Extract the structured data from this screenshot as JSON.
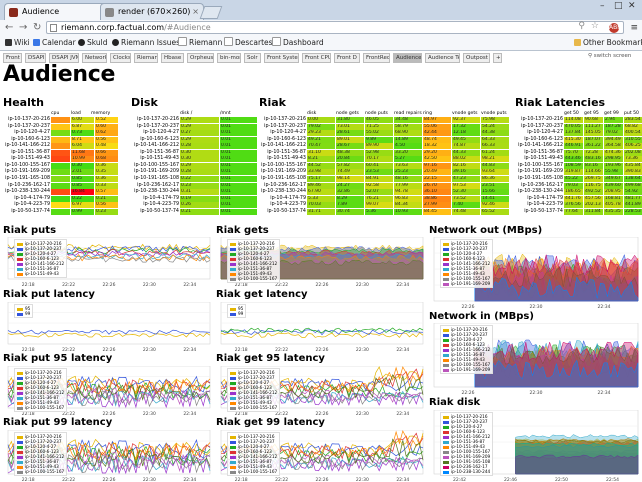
{
  "browser": {
    "tabs": [
      {
        "label": "Audience",
        "active": true
      },
      {
        "label": "render (670×260)",
        "active": false
      }
    ],
    "url_host": "riemann.corp.factual.com",
    "url_path": "/#Audience",
    "ext_badge": "ABP"
  },
  "bookmarks": {
    "items": [
      "Wiki",
      "Calendar",
      "Skuld",
      "Riemann Issues",
      "Riemann",
      "Descartes",
      "Dashboard"
    ],
    "other": "Other Bookmarks"
  },
  "dash_tabs": {
    "items": [
      "Front",
      "DSAPI",
      "DSAPI JVM",
      "Network",
      "Clocks",
      "Riemann",
      "Hbase",
      "Orpheus",
      "bin-mon",
      "Solr",
      "Front System",
      "Front CPU",
      "Front D",
      "FrontReq",
      "Audience",
      "Audience Test",
      "Outpost"
    ],
    "active": "Audience",
    "add": "+",
    "search_label": "switch screen"
  },
  "page": {
    "title": "Audience"
  },
  "sections": {
    "health": "Health",
    "disk": "Disk",
    "riak": "Riak",
    "riak_latencies": "Riak Latencies"
  },
  "hosts": [
    "ip-10-137-20-216",
    "ip-10-137-20-237",
    "ip-10-120-4-27",
    "ip-10-160-6-123",
    "ip-10-141-166-212",
    "ip-10-151-36-87",
    "ip-10-151-49-43",
    "ip-10-100-155-167",
    "ip-10-191-169-209",
    "ip-10-191-165-108",
    "ip-10-236-162-17",
    "ip-10-238-130-244",
    "ip-10-4-174-79",
    "ip-10-4-223-79",
    "ip-10-50-137-74"
  ],
  "health_cols": [
    "cpu",
    "load",
    "memory"
  ],
  "disk_cols": [
    "disk /",
    "/mnt"
  ],
  "riak_cols": [
    "disk",
    "node gets",
    "node puts",
    "read repairs",
    "ring",
    "vnode gets",
    "vnode puts"
  ],
  "lat_cols": [
    "get 50",
    "get 95",
    "get 99",
    "put 50"
  ],
  "health_load": [
    "6.00",
    "6.87",
    "0.73",
    "8.71",
    "6.04",
    "11.68",
    "10.99",
    "0.30",
    "2.01",
    "0.85",
    "0.85",
    "16.84",
    "0.22",
    "6.97",
    "0.99"
  ],
  "health_cpu": [
    "0.67",
    "0.55",
    "0.15",
    "0.58",
    "0.66",
    "0.81",
    "0.84",
    "0.03",
    "0.13",
    "0.18",
    "0.08",
    "0.83",
    "0.02",
    "0.50",
    "0.07"
  ],
  "health_mem": [
    "0.52",
    "0.60",
    "0.62",
    "0.56",
    "0.48",
    "0.66",
    "0.68",
    "0.36",
    "0.35",
    "0.36",
    "0.33",
    "0.57",
    "0.21",
    "0.56",
    "0.23"
  ],
  "disk_root": [
    "0.29",
    "0.29",
    "0.27",
    "0.29",
    "0.28",
    "0.30",
    "0.30",
    "0.29",
    "0.28",
    "0.22",
    "0.23",
    "0.31",
    "0.19",
    "0.26",
    "0.21"
  ],
  "disk_mnt": [
    "0.01",
    "0.01",
    "0.01",
    "0.01",
    "0.01",
    "0.01",
    "0.01",
    "0.01",
    "0.01",
    "0.01",
    "0.01",
    "0.01",
    "0.01",
    "0.01",
    "0.01"
  ],
  "charts": {
    "riak_puts": {
      "title": "Riak puts",
      "x_ticks": [
        "22:18",
        "22:22",
        "22:26",
        "22:30",
        "22:34"
      ]
    },
    "riak_gets": {
      "title": "Riak gets",
      "x_ticks": [
        "22:18",
        "22:22",
        "22:26",
        "22:30",
        "22:34"
      ]
    },
    "net_out": {
      "title": "Network out (MBps)",
      "x_ticks": [
        "22:26",
        "22:30",
        "22:34"
      ]
    },
    "put_lat": {
      "title": "Riak put latency",
      "x_ticks": [
        "22:18",
        "22:22",
        "22:26",
        "22:30",
        "22:34"
      ]
    },
    "get_lat": {
      "title": "Riak get latency",
      "x_ticks": [
        "22:18",
        "22:22",
        "22:26",
        "22:30",
        "22:34"
      ]
    },
    "net_in": {
      "title": "Network in (MBps)",
      "x_ticks": [
        "22:26",
        "22:30",
        "22:34"
      ]
    },
    "put95": {
      "title": "Riak put 95 latency",
      "x_ticks": [
        "22:18",
        "22:22",
        "22:26",
        "22:30",
        "22:34"
      ]
    },
    "get95": {
      "title": "Riak get 95 latency",
      "x_ticks": [
        "22:18",
        "22:22",
        "22:26",
        "22:30",
        "22:34"
      ]
    },
    "riak_disk": {
      "title": "Riak disk",
      "x_ticks": [
        "22:42",
        "22:46",
        "22:50",
        "22:54"
      ]
    },
    "put99": {
      "title": "Riak put 99 latency",
      "x_ticks": [
        "22:18",
        "22:22",
        "22:26",
        "22:30",
        "22:34"
      ]
    },
    "get99": {
      "title": "Riak get 99 latency",
      "x_ticks": [
        "22:18",
        "22:22",
        "22:26",
        "22:30",
        "22:34"
      ]
    }
  },
  "legend_small": [
    "95",
    "99"
  ]
}
